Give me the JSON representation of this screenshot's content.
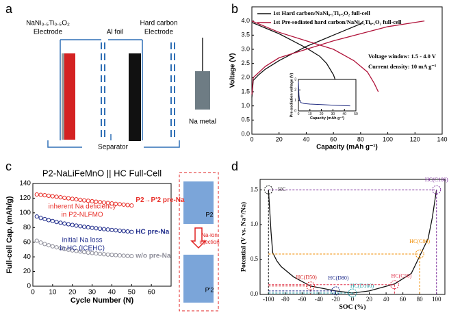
{
  "panels": {
    "labels": [
      "a",
      "b",
      "c",
      "d"
    ],
    "a": {
      "cathode": [
        "NaNi₀.₅Ti₀.₅O₂",
        "Electrode"
      ],
      "foil": "Al foil",
      "anode": [
        "Hard carbon",
        "Electrode"
      ],
      "metal": "Na metal",
      "separator": "Separator"
    },
    "c_diagram": {
      "top": "P2",
      "arrow": [
        "Na-ion",
        "injection"
      ],
      "bottom": "P'2"
    }
  },
  "chart_data": [
    {
      "type": "line",
      "x_label": "Capacity (mAh g⁻¹)",
      "y_label": "Voltage (V)",
      "xlim": [
        0,
        140
      ],
      "xticks": [
        0,
        20,
        40,
        60,
        80,
        100,
        120,
        140
      ],
      "ylim": [
        0,
        4.5
      ],
      "yticks": [
        {
          "value": 0,
          "label": "0.0"
        },
        0.5,
        {
          "value": 1,
          "label": "1.0"
        },
        1.5,
        {
          "value": 2,
          "label": "2.0"
        },
        2.5,
        {
          "value": 3,
          "label": "3.0"
        },
        3.5,
        {
          "value": 4,
          "label": "4.0"
        }
      ],
      "annotations": [
        "Voltage window: 1.5 - 4.0 V",
        "Current density: 10 mA g⁻¹"
      ],
      "series": [
        {
          "name": "1st Hard carbon/NaNi₀.₅Ti₀.₅O₂ full-cell",
          "color": "#111111",
          "x": [
            0,
            1,
            5,
            10,
            20,
            30,
            40,
            50,
            60,
            70,
            80,
            82,
            null,
            0,
            10,
            20,
            30,
            40,
            50,
            55,
            60,
            63,
            65
          ],
          "values": [
            1.3,
            1.9,
            2.1,
            2.3,
            2.6,
            2.85,
            3.1,
            3.3,
            3.5,
            3.7,
            3.9,
            4.0,
            null,
            3.95,
            3.75,
            3.55,
            3.3,
            3.05,
            2.75,
            2.5,
            2.1,
            1.7,
            1.4
          ]
        },
        {
          "name": "1st Pre-sodiated hard carbon/NaNi₀.₅Ti₀.₅O₂ full-cell",
          "color": "#b0133a",
          "x": [
            0,
            1,
            10,
            20,
            40,
            60,
            80,
            100,
            120,
            127,
            null,
            0,
            10,
            20,
            40,
            60,
            75,
            85,
            90,
            93
          ],
          "values": [
            1.4,
            2.0,
            2.4,
            2.7,
            3.0,
            3.3,
            3.55,
            3.8,
            3.95,
            4.0,
            null,
            4.0,
            3.8,
            3.6,
            3.3,
            3.0,
            2.6,
            2.2,
            1.8,
            1.5
          ]
        }
      ]
    },
    {
      "type": "line",
      "x_label": "Capacity (mAh g⁻¹)",
      "y_label": "Pre-sodiation voltage (V)",
      "xlim": [
        0,
        50
      ],
      "xticks": [
        0,
        10,
        20,
        30,
        40,
        50
      ],
      "ylim": [
        0,
        3
      ],
      "yticks": [
        0,
        1,
        2,
        3
      ],
      "series": [
        {
          "color": "#1f2a80",
          "x": [
            0,
            0.5,
            1,
            2,
            5,
            10,
            20,
            30,
            40,
            45
          ],
          "values": [
            2.8,
            1.5,
            1.0,
            0.8,
            0.7,
            0.65,
            0.6,
            0.55,
            0.5,
            0.48
          ]
        }
      ]
    },
    {
      "type": "scatter",
      "title": "P2-NaLiFeMnO || HC Full-Cell",
      "x_label": "Cycle Number (N)",
      "y_label": "Full-cell Cap. (mAh/g)",
      "xlim": [
        0,
        70
      ],
      "xticks": [
        0,
        10,
        20,
        30,
        40,
        50,
        60
      ],
      "ylim": [
        0,
        140
      ],
      "yticks": [
        0,
        20,
        40,
        60,
        80,
        100,
        120,
        140
      ],
      "annotations": [
        "inherent Na deficiency",
        "in P2-NLFMO",
        "initial Na loss",
        "in HC (ICEHC)"
      ],
      "x": [
        2,
        4,
        6,
        8,
        10,
        12,
        14,
        16,
        18,
        20,
        22,
        24,
        26,
        28,
        30,
        32,
        34,
        36,
        38,
        40,
        42,
        44,
        46,
        48,
        50
      ],
      "series": [
        {
          "name": "P2→P'2 pre-Na",
          "color": "#e8302a",
          "values": [
            125,
            124.5,
            124,
            123.3,
            122.6,
            121.9,
            121.2,
            120.5,
            119.8,
            119.1,
            118.4,
            117.7,
            117,
            116.4,
            115.8,
            115.2,
            114.6,
            114,
            113.4,
            112.8,
            112.2,
            111.7,
            111.2,
            110.6,
            110
          ]
        },
        {
          "name": "HC pre-Na",
          "color": "#1d2a8a",
          "values": [
            95,
            93,
            91.5,
            90,
            88.8,
            87.6,
            86.5,
            85.4,
            84.4,
            83.5,
            82.6,
            81.8,
            81,
            80.3,
            79.6,
            79,
            78.4,
            77.8,
            77.2,
            76.7,
            76.2,
            75.7,
            75.2,
            74.6,
            74
          ]
        },
        {
          "name": "w/o pre-Na",
          "color": "#8e8e9a",
          "values": [
            62,
            59.5,
            57.5,
            55.8,
            54.3,
            53,
            51.8,
            50.7,
            49.7,
            48.8,
            48,
            47.2,
            46.5,
            45.8,
            45.2,
            44.6,
            44.1,
            43.6,
            43.1,
            42.7,
            42.3,
            41.9,
            41.6,
            41.3,
            41
          ]
        }
      ]
    },
    {
      "type": "line",
      "x_label": "SOC (%)",
      "y_label": "Potential (V vs. Na⁺/Na)",
      "xlim": [
        -110,
        110
      ],
      "xticks": [
        -100,
        -80,
        -60,
        -40,
        -20,
        0,
        20,
        40,
        60,
        80,
        100
      ],
      "ylim": [
        0,
        1.65
      ],
      "yticks": [
        {
          "value": 0,
          "label": "0.0"
        },
        0.5,
        {
          "value": 1,
          "label": "1.0"
        },
        1.5
      ],
      "series": [
        {
          "color": "#111111",
          "x": [
            -100,
            -97,
            -95,
            -90,
            -85,
            -70,
            -50,
            -20,
            0,
            20,
            50,
            70,
            80,
            90,
            95,
            100
          ],
          "values": [
            1.5,
            0.9,
            0.6,
            0.48,
            0.4,
            0.25,
            0.12,
            0.05,
            0.02,
            0.05,
            0.15,
            0.3,
            0.55,
            0.8,
            1.1,
            1.5
          ]
        }
      ],
      "points": [
        {
          "label": "HC",
          "x": -100,
          "y": 1.5,
          "color": "#111111"
        },
        {
          "label": "HC(D50)",
          "x": -50,
          "y": 0.12,
          "color": "#d62020"
        },
        {
          "label": "HC(D80)",
          "x": -20,
          "y": 0.05,
          "color": "#1d2a8a"
        },
        {
          "label": "HC(D100)",
          "x": 0,
          "y": 0.02,
          "color": "#1a9aa0"
        },
        {
          "label": "HC(C50)",
          "x": 50,
          "y": 0.14,
          "color": "#e0304a"
        },
        {
          "label": "HC(C80)",
          "x": 80,
          "y": 0.58,
          "color": "#f08c00"
        },
        {
          "label": "HC(C100)",
          "x": 100,
          "y": 1.5,
          "color": "#7a2a9a"
        }
      ]
    }
  ]
}
